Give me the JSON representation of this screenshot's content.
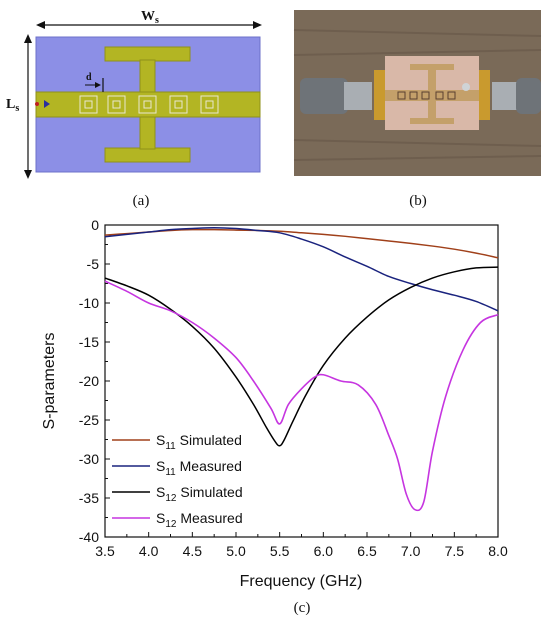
{
  "panels": {
    "a": {
      "caption": "(a)",
      "width_label_main": "W",
      "width_label_sub": "s",
      "length_label_main": "L",
      "length_label_sub": "s",
      "gap_label": "d"
    },
    "b": {
      "caption": "(b)"
    },
    "c": {
      "caption": "(c)"
    }
  },
  "colors": {
    "substrate": "#8c8fe6",
    "copper": "#b3b523",
    "copper_edge": "#8f9119",
    "s11_simulated": "#a0401a",
    "s11_measured": "#1a237e",
    "s12_simulated": "#000000",
    "s12_measured": "#c635e0"
  },
  "chart_data": {
    "type": "line",
    "xlabel": "Frequency (GHz)",
    "ylabel": "S-parameters",
    "xlim": [
      3.5,
      8.0
    ],
    "ylim": [
      -40,
      0
    ],
    "xticks": [
      "3.5",
      "4.0",
      "4.5",
      "5.0",
      "5.5",
      "6.0",
      "6.5",
      "7.0",
      "7.5",
      "8.0"
    ],
    "yticks": [
      "0",
      "-5",
      "-10",
      "-15",
      "-20",
      "-25",
      "-30",
      "-35",
      "-40"
    ],
    "grid": false,
    "legend_position": "bottom-left",
    "series": [
      {
        "name": "S11 Simulated",
        "label_main": "S",
        "label_sub": "11",
        "label_rest": " Simulated",
        "color_key": "s11_simulated",
        "x": [
          3.5,
          3.75,
          4.0,
          4.25,
          4.5,
          4.75,
          5.0,
          5.25,
          5.5,
          5.75,
          6.0,
          6.25,
          6.5,
          6.75,
          7.0,
          7.25,
          7.5,
          7.75,
          8.0
        ],
        "y": [
          -1.3,
          -1.1,
          -0.9,
          -0.7,
          -0.6,
          -0.6,
          -0.65,
          -0.7,
          -0.8,
          -1.0,
          -1.2,
          -1.45,
          -1.75,
          -2.05,
          -2.35,
          -2.7,
          -3.1,
          -3.6,
          -4.2
        ]
      },
      {
        "name": "S11 Measured",
        "label_main": "S",
        "label_sub": "11",
        "label_rest": " Measured",
        "color_key": "s11_measured",
        "x": [
          3.5,
          3.75,
          4.0,
          4.25,
          4.5,
          4.75,
          5.0,
          5.25,
          5.5,
          5.75,
          6.0,
          6.25,
          6.5,
          6.75,
          7.0,
          7.25,
          7.5,
          7.75,
          8.0
        ],
        "y": [
          -1.5,
          -1.2,
          -0.9,
          -0.6,
          -0.45,
          -0.35,
          -0.45,
          -0.7,
          -1.0,
          -1.8,
          -2.8,
          -4.1,
          -5.3,
          -6.6,
          -7.5,
          -8.3,
          -9.0,
          -9.8,
          -11.0
        ]
      },
      {
        "name": "S12 Simulated",
        "label_main": "S",
        "label_sub": "12",
        "label_rest": " Simulated",
        "color_key": "s12_simulated",
        "x": [
          3.5,
          3.75,
          4.0,
          4.25,
          4.5,
          4.75,
          5.0,
          5.2,
          5.35,
          5.45,
          5.5,
          5.55,
          5.65,
          5.8,
          6.0,
          6.25,
          6.5,
          6.75,
          7.0,
          7.25,
          7.5,
          7.75,
          8.0
        ],
        "y": [
          -6.8,
          -7.8,
          -9.0,
          -10.8,
          -13.0,
          -15.8,
          -19.5,
          -23.0,
          -26.0,
          -27.8,
          -28.3,
          -27.6,
          -25.2,
          -21.8,
          -18.0,
          -14.5,
          -11.8,
          -9.6,
          -8.0,
          -6.8,
          -6.0,
          -5.5,
          -5.4
        ]
      },
      {
        "name": "S12 Measured",
        "label_main": "S",
        "label_sub": "12",
        "label_rest": " Measured",
        "color_key": "s12_measured",
        "x": [
          3.5,
          3.75,
          4.0,
          4.25,
          4.5,
          4.75,
          5.0,
          5.2,
          5.4,
          5.5,
          5.6,
          5.75,
          5.9,
          6.0,
          6.2,
          6.4,
          6.6,
          6.75,
          6.85,
          6.95,
          7.05,
          7.15,
          7.25,
          7.4,
          7.6,
          7.8,
          8.0
        ],
        "y": [
          -7.2,
          -8.5,
          -10.0,
          -11.0,
          -12.5,
          -14.5,
          -17.0,
          -20.0,
          -23.5,
          -25.5,
          -23.0,
          -21.0,
          -19.5,
          -19.2,
          -20.0,
          -20.5,
          -23.0,
          -27.0,
          -30.0,
          -34.5,
          -36.5,
          -35.5,
          -29.0,
          -22.0,
          -16.0,
          -12.5,
          -11.5
        ]
      }
    ]
  }
}
